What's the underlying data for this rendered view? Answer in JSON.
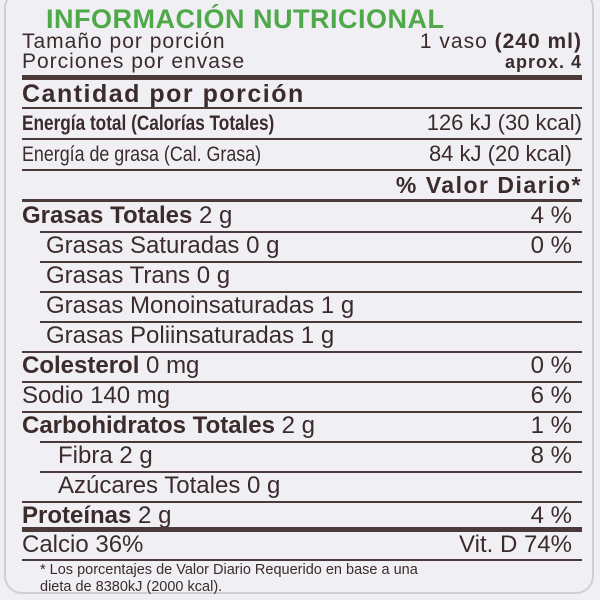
{
  "title": "INFORMACIÓN NUTRICIONAL",
  "serving": {
    "label": "Tamaño por porción",
    "value_pre": "1 vaso",
    "value_bold": "(240 ml)"
  },
  "servings": {
    "label": "Porciones por envase",
    "value": "aprox. 4"
  },
  "amount_header": "Cantidad por porción",
  "energy_total": {
    "label": "Energía total (Calorías Totales)",
    "value": "126 kJ (30 kcal)"
  },
  "energy_fat": {
    "label": "Energía de grasa (Cal. Grasa)",
    "value": "84 kJ (20 kcal)"
  },
  "dv_header": "% Valor Diario*",
  "nutrients": [
    {
      "name": "Grasas Totales",
      "amount": "2 g",
      "dv": "4 %"
    },
    {
      "name": "Grasas Saturadas",
      "amount": "0 g",
      "dv": "0 %"
    },
    {
      "name": "Grasas Trans",
      "amount": "0 g",
      "dv": ""
    },
    {
      "name": "Grasas Monoinsaturadas",
      "amount": "1 g",
      "dv": ""
    },
    {
      "name": "Grasas Poliinsaturadas",
      "amount": "1 g",
      "dv": ""
    },
    {
      "name": "Colesterol",
      "amount": "0 mg",
      "dv": "0 %"
    },
    {
      "name": "Sodio",
      "amount": "140 mg",
      "dv": "6 %"
    },
    {
      "name": "Carbohidratos Totales",
      "amount": "2 g",
      "dv": "1 %"
    },
    {
      "name": "Fibra",
      "amount": "2 g",
      "dv": "8 %"
    },
    {
      "name": "Azúcares Totales",
      "amount": "0 g",
      "dv": ""
    },
    {
      "name": "Proteínas",
      "amount": "2 g",
      "dv": "4 %"
    }
  ],
  "vitamins": {
    "left": "Calcio 36%",
    "right": "Vit. D 74%"
  },
  "footnote": {
    "line1": "* Los porcentajes de Valor Diario Requerido en base a una",
    "line2": "dieta de 8380kJ (2000 kcal)."
  },
  "colors": {
    "title": "#4fa94a",
    "text": "#3b2b2b",
    "background": "#f0f0f4"
  }
}
